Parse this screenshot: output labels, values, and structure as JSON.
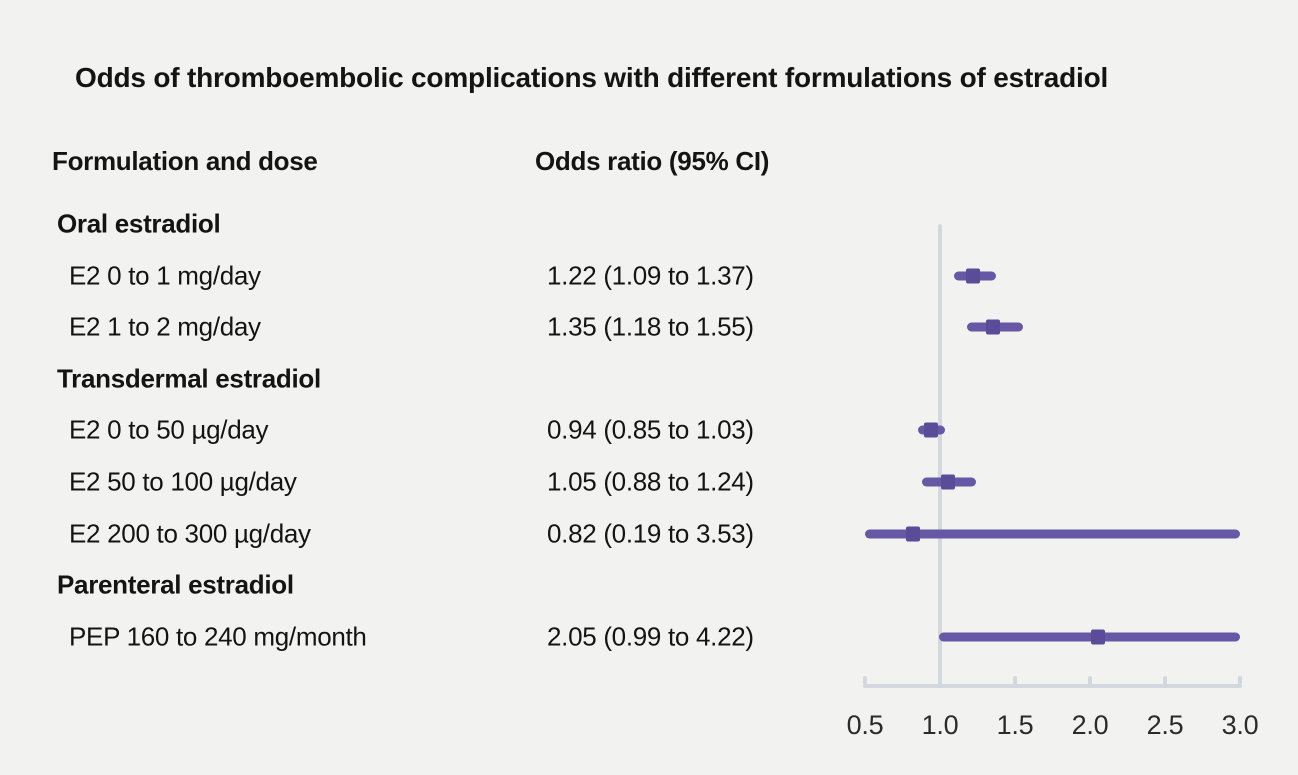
{
  "title": "Odds of thromboembolic complications with different formulations of estradiol",
  "columns": {
    "formulation": "Formulation and dose",
    "odds": "Odds ratio (95% CI)"
  },
  "chart_data": {
    "type": "forest",
    "title": "Odds of thromboembolic complications with different formulations of estradiol",
    "x_axis": {
      "tick_labels": [
        "0.5",
        "1.0",
        "1.5",
        "2.0",
        "2.5",
        "3.0"
      ],
      "tick_values": [
        0.5,
        1.0,
        1.5,
        2.0,
        2.5,
        3.0
      ],
      "xlim": [
        0.5,
        3.0
      ],
      "reference_line": 1.0
    },
    "rows": [
      {
        "kind": "group",
        "label": "Oral estradiol"
      },
      {
        "kind": "item",
        "label": "E2 0 to 1 mg/day",
        "value_text": "1.22 (1.09 to 1.37)",
        "or": 1.22,
        "lo": 1.09,
        "hi": 1.37
      },
      {
        "kind": "item",
        "label": "E2 1 to 2 mg/day",
        "value_text": "1.35 (1.18 to 1.55)",
        "or": 1.35,
        "lo": 1.18,
        "hi": 1.55
      },
      {
        "kind": "group",
        "label": "Transdermal estradiol"
      },
      {
        "kind": "item",
        "label": "E2 0 to 50 µg/day",
        "value_text": "0.94 (0.85 to 1.03)",
        "or": 0.94,
        "lo": 0.85,
        "hi": 1.03
      },
      {
        "kind": "item",
        "label": "E2 50 to 100 µg/day",
        "value_text": "1.05 (0.88 to 1.24)",
        "or": 1.05,
        "lo": 0.88,
        "hi": 1.24
      },
      {
        "kind": "item",
        "label": "E2 200 to 300 µg/day",
        "value_text": "0.82 (0.19 to 3.53)",
        "or": 0.82,
        "lo": 0.19,
        "hi": 3.53
      },
      {
        "kind": "group",
        "label": "Parenteral estradiol"
      },
      {
        "kind": "item",
        "label": "PEP 160 to 240 mg/month",
        "value_text": "2.05 (0.99 to 4.22)",
        "or": 2.05,
        "lo": 0.99,
        "hi": 4.22
      }
    ],
    "colors": {
      "background": "#f2f2f1",
      "text": "#141414",
      "tick_text": "#2b2b2b",
      "ci_line": "#6658a4",
      "marker": "#5a4c98",
      "axis": "#d3d7e0",
      "reference": "#d3d7e0"
    }
  }
}
